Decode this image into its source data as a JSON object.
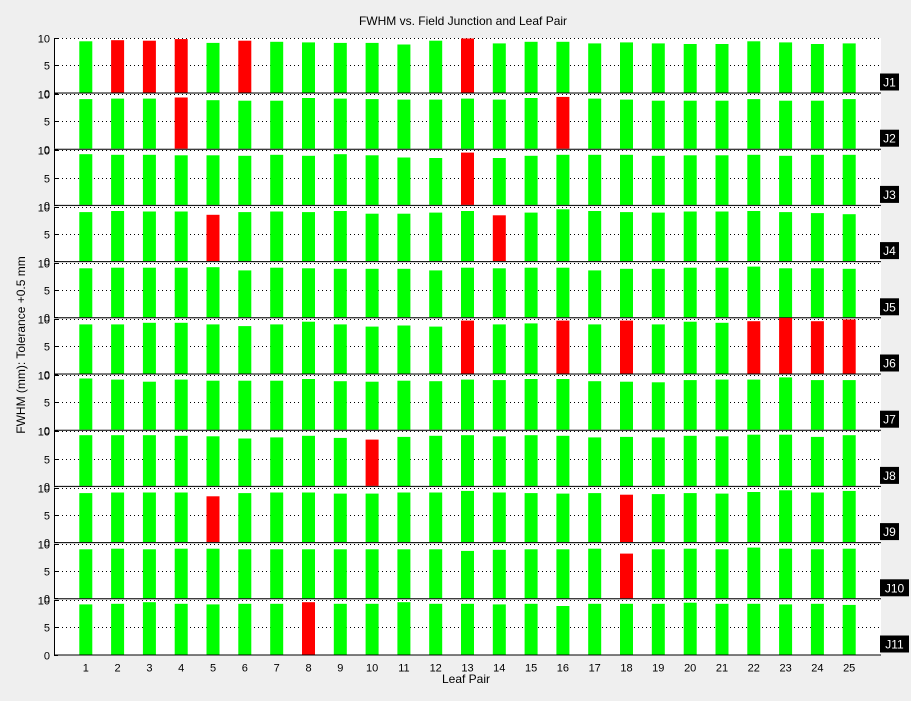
{
  "figure": {
    "background": "#efefef"
  },
  "chart_data": {
    "type": "bar",
    "title": "FWHM vs. Field Junction and Leaf Pair",
    "xlabel": "Leaf Pair",
    "ylabel": "FWHM (mm): Tolerance +0.5 mm",
    "categories": [
      "1",
      "2",
      "3",
      "4",
      "5",
      "6",
      "7",
      "8",
      "9",
      "10",
      "11",
      "12",
      "13",
      "14",
      "15",
      "16",
      "17",
      "18",
      "19",
      "20",
      "21",
      "22",
      "23",
      "24",
      "25"
    ],
    "ylim": [
      0,
      10
    ],
    "yticks": [
      "0",
      "5",
      "10"
    ],
    "grid": {
      "y": "dotted",
      "x": "none"
    },
    "colors": {
      "pass": "#00ff00",
      "fail": "#ff0000",
      "panel": "#ffffff",
      "label_bg": "#000000",
      "label_text": "#ffffff"
    },
    "series": [
      {
        "name": "J1",
        "values": [
          9.4,
          9.6,
          9.5,
          9.8,
          9.1,
          9.5,
          9.3,
          9.2,
          9.1,
          9.1,
          8.8,
          9.5,
          9.9,
          9.0,
          9.3,
          9.3,
          9.0,
          9.2,
          9.0,
          8.9,
          8.9,
          9.4,
          9.2,
          8.9,
          9.0
        ],
        "fail": [
          false,
          true,
          true,
          true,
          false,
          true,
          false,
          false,
          false,
          false,
          false,
          false,
          true,
          false,
          false,
          false,
          false,
          false,
          false,
          false,
          false,
          false,
          false,
          false,
          false
        ]
      },
      {
        "name": "J2",
        "values": [
          9.1,
          9.2,
          9.2,
          9.4,
          8.9,
          8.8,
          8.8,
          9.3,
          9.2,
          9.1,
          9.0,
          9.0,
          9.2,
          9.0,
          9.3,
          9.5,
          9.2,
          9.0,
          8.8,
          8.8,
          8.8,
          9.1,
          8.8,
          8.8,
          9.1
        ],
        "fail": [
          false,
          false,
          false,
          true,
          false,
          false,
          false,
          false,
          false,
          false,
          false,
          false,
          false,
          false,
          false,
          true,
          false,
          false,
          false,
          false,
          false,
          false,
          false,
          false,
          false
        ]
      },
      {
        "name": "J3",
        "values": [
          9.3,
          9.2,
          9.2,
          9.1,
          9.1,
          9.0,
          9.2,
          9.0,
          9.3,
          9.1,
          8.7,
          8.6,
          9.6,
          8.6,
          9.0,
          9.2,
          9.2,
          9.2,
          9.0,
          9.1,
          9.1,
          9.2,
          9.0,
          9.2,
          9.2
        ],
        "fail": [
          false,
          false,
          false,
          false,
          false,
          false,
          false,
          false,
          false,
          false,
          false,
          false,
          true,
          false,
          false,
          false,
          false,
          false,
          false,
          false,
          false,
          false,
          false,
          false,
          false
        ]
      },
      {
        "name": "J4",
        "values": [
          9.0,
          9.2,
          9.1,
          9.1,
          8.5,
          9.0,
          9.1,
          9.0,
          9.2,
          8.7,
          8.7,
          8.9,
          9.2,
          8.4,
          8.9,
          9.5,
          9.2,
          9.0,
          8.9,
          9.1,
          9.1,
          9.2,
          9.0,
          8.8,
          8.6
        ],
        "fail": [
          false,
          false,
          false,
          false,
          true,
          false,
          false,
          false,
          false,
          false,
          false,
          false,
          false,
          true,
          false,
          false,
          false,
          false,
          false,
          false,
          false,
          false,
          false,
          false,
          false
        ]
      },
      {
        "name": "J5",
        "values": [
          9.0,
          9.1,
          9.1,
          9.1,
          9.2,
          8.6,
          9.1,
          9.0,
          8.9,
          8.9,
          8.9,
          8.6,
          9.1,
          9.0,
          9.1,
          9.1,
          8.6,
          8.9,
          8.9,
          9.1,
          9.1,
          9.3,
          9.0,
          9.0,
          8.9
        ],
        "fail": [
          false,
          false,
          false,
          false,
          false,
          false,
          false,
          false,
          false,
          false,
          false,
          false,
          false,
          false,
          false,
          false,
          false,
          false,
          false,
          false,
          false,
          false,
          false,
          false,
          false
        ]
      },
      {
        "name": "J6",
        "values": [
          9.0,
          9.0,
          9.3,
          9.3,
          9.0,
          8.7,
          9.0,
          9.5,
          9.0,
          8.6,
          8.8,
          8.6,
          9.7,
          9.0,
          9.2,
          9.7,
          9.0,
          9.7,
          9.0,
          9.5,
          9.3,
          9.6,
          10.2,
          9.6,
          9.9
        ],
        "fail": [
          false,
          false,
          false,
          false,
          false,
          false,
          false,
          false,
          false,
          false,
          false,
          false,
          true,
          false,
          false,
          true,
          false,
          true,
          false,
          false,
          false,
          true,
          true,
          true,
          true
        ]
      },
      {
        "name": "J7",
        "values": [
          9.4,
          9.2,
          8.8,
          9.2,
          9.0,
          9.0,
          9.0,
          9.3,
          8.9,
          8.8,
          9.0,
          8.9,
          9.2,
          9.1,
          9.3,
          9.3,
          8.9,
          8.8,
          8.7,
          9.1,
          9.2,
          9.2,
          9.6,
          9.1,
          9.1
        ],
        "fail": [
          false,
          false,
          false,
          false,
          false,
          false,
          false,
          false,
          false,
          false,
          false,
          false,
          false,
          false,
          false,
          false,
          false,
          false,
          false,
          false,
          false,
          false,
          false,
          false,
          false
        ]
      },
      {
        "name": "J8",
        "values": [
          9.3,
          9.3,
          9.3,
          9.2,
          9.1,
          8.7,
          8.9,
          9.2,
          8.8,
          8.5,
          9.0,
          9.2,
          9.3,
          9.1,
          9.3,
          9.2,
          8.9,
          9.0,
          8.9,
          9.2,
          9.1,
          9.4,
          9.4,
          9.0,
          9.3
        ],
        "fail": [
          false,
          false,
          false,
          false,
          false,
          false,
          false,
          false,
          false,
          true,
          false,
          false,
          false,
          false,
          false,
          false,
          false,
          false,
          false,
          false,
          false,
          false,
          false,
          false,
          false
        ]
      },
      {
        "name": "J9",
        "values": [
          9.0,
          9.1,
          9.1,
          9.1,
          8.4,
          9.0,
          9.1,
          9.1,
          8.9,
          8.9,
          9.1,
          9.1,
          9.4,
          9.1,
          9.0,
          8.9,
          9.0,
          8.7,
          8.8,
          9.0,
          8.9,
          9.2,
          9.5,
          9.1,
          9.4
        ],
        "fail": [
          false,
          false,
          false,
          false,
          true,
          false,
          false,
          false,
          false,
          false,
          false,
          false,
          false,
          false,
          false,
          false,
          false,
          true,
          false,
          false,
          false,
          false,
          false,
          false,
          false
        ]
      },
      {
        "name": "J10",
        "values": [
          9.0,
          9.1,
          9.0,
          9.1,
          9.1,
          9.0,
          9.0,
          9.0,
          9.0,
          9.0,
          9.0,
          9.0,
          8.7,
          8.9,
          9.0,
          9.0,
          9.1,
          8.2,
          9.0,
          9.1,
          9.0,
          9.3,
          9.1,
          9.0,
          9.1
        ],
        "fail": [
          false,
          false,
          false,
          false,
          false,
          false,
          false,
          false,
          false,
          false,
          false,
          false,
          false,
          false,
          false,
          false,
          false,
          true,
          false,
          false,
          false,
          false,
          false,
          false,
          false
        ]
      },
      {
        "name": "J11",
        "values": [
          9.2,
          9.3,
          9.6,
          9.3,
          9.2,
          9.3,
          9.3,
          9.6,
          9.3,
          9.3,
          9.6,
          9.3,
          9.3,
          9.2,
          9.3,
          8.9,
          9.3,
          9.3,
          9.3,
          9.5,
          9.3,
          9.3,
          9.2,
          9.3,
          9.1
        ],
        "fail": [
          false,
          false,
          false,
          false,
          false,
          false,
          false,
          true,
          false,
          false,
          false,
          false,
          false,
          false,
          false,
          false,
          false,
          false,
          false,
          false,
          false,
          false,
          false,
          false,
          false
        ]
      }
    ]
  }
}
